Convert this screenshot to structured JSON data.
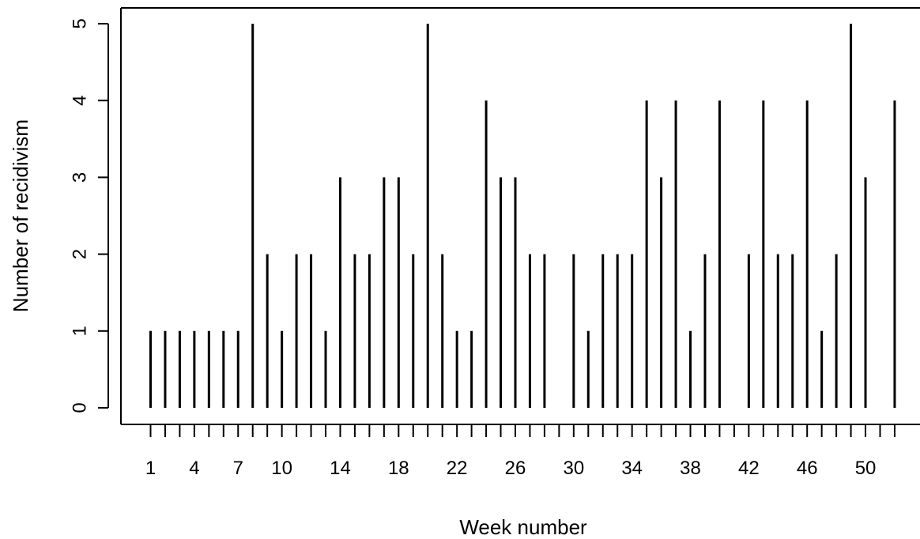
{
  "chart_data": {
    "type": "bar",
    "style": "vertical-line histogram",
    "xlabel": "Week number",
    "ylabel": "Number of recidivism",
    "x": [
      1,
      2,
      3,
      4,
      5,
      6,
      7,
      8,
      9,
      10,
      11,
      12,
      13,
      14,
      15,
      16,
      17,
      18,
      19,
      20,
      21,
      22,
      23,
      24,
      25,
      26,
      27,
      28,
      30,
      31,
      32,
      33,
      34,
      35,
      36,
      37,
      38,
      39,
      40,
      42,
      43,
      44,
      45,
      46,
      47,
      48,
      49,
      50,
      52
    ],
    "values": [
      1,
      1,
      1,
      1,
      1,
      1,
      1,
      5,
      2,
      1,
      2,
      2,
      1,
      3,
      2,
      2,
      3,
      3,
      2,
      5,
      2,
      1,
      1,
      4,
      3,
      3,
      2,
      2,
      2,
      1,
      2,
      2,
      2,
      4,
      3,
      4,
      1,
      2,
      4,
      2,
      4,
      2,
      2,
      4,
      1,
      2,
      5,
      3,
      4
    ],
    "x_tick_labels": [
      "1",
      "4",
      "7",
      "10",
      "14",
      "18",
      "22",
      "26",
      "30",
      "34",
      "38",
      "42",
      "46",
      "50"
    ],
    "y_tick_labels": [
      "0",
      "1",
      "2",
      "3",
      "4",
      "5"
    ],
    "ylim": [
      0,
      5
    ],
    "grid": false,
    "legend": "none"
  }
}
